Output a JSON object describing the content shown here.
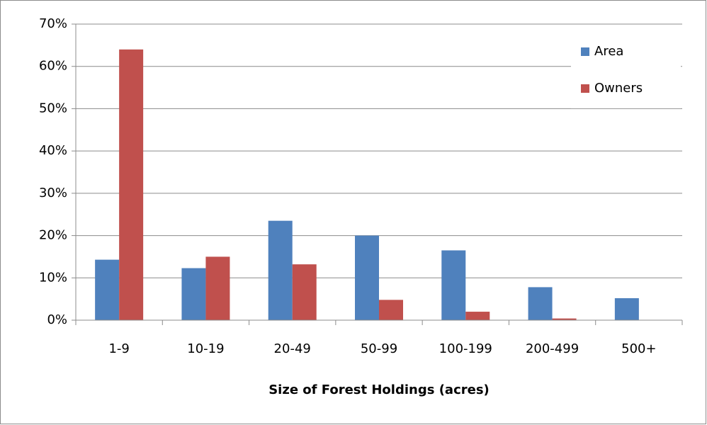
{
  "chart_data": {
    "type": "bar",
    "x_label": "Size of Forest Holdings (acres)",
    "categories": [
      "1-9",
      "10-19",
      "20-49",
      "50-99",
      "100-199",
      "200-499",
      "500+"
    ],
    "series": [
      {
        "name": "Area",
        "color": "#4f81bd",
        "values": [
          14.3,
          12.3,
          23.5,
          20,
          16.5,
          7.8,
          5.2
        ]
      },
      {
        "name": "Owners",
        "color": "#c0504d",
        "values": [
          64,
          15,
          13.2,
          4.8,
          2,
          0.4,
          0
        ]
      }
    ],
    "ylim": [
      0,
      70
    ],
    "yticks": [
      {
        "value": 0,
        "label": "0%"
      },
      {
        "value": 10,
        "label": "10%"
      },
      {
        "value": 20,
        "label": "20%"
      },
      {
        "value": 30,
        "label": "30%"
      },
      {
        "value": 40,
        "label": "40%"
      },
      {
        "value": 50,
        "label": "50%"
      },
      {
        "value": 60,
        "label": "60%"
      },
      {
        "value": 70,
        "label": "70%"
      }
    ],
    "grid": true,
    "legend": "top-right"
  }
}
